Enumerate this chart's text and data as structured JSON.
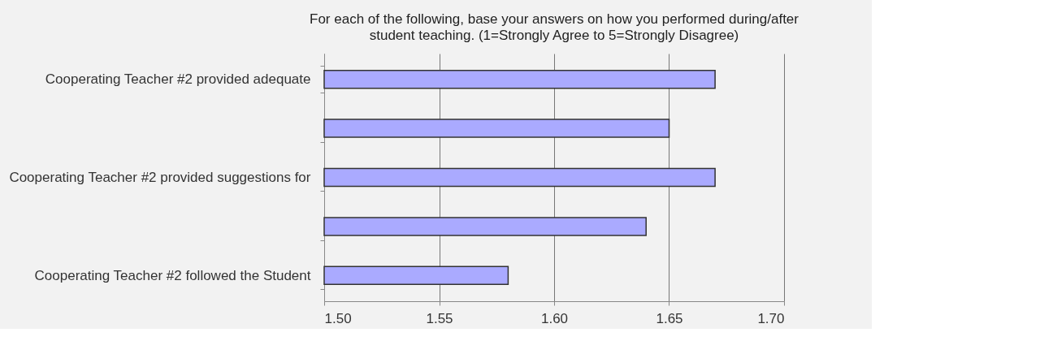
{
  "chart_data": {
    "type": "bar",
    "orientation": "horizontal",
    "title": "For each of the following, base your answers on how you performed during/after\nstudent teaching.   (1=Strongly Agree to 5=Strongly Disagree)",
    "categories": [
      "Cooperating Teacher #2 provided adequate",
      null,
      "Cooperating Teacher #2 provided suggestions for",
      null,
      "Cooperating Teacher #2 followed the Student"
    ],
    "values": [
      1.67,
      1.65,
      1.67,
      1.64,
      1.58
    ],
    "color": "#aaaaff",
    "xlim": [
      1.5,
      1.7
    ],
    "xticks": [
      {
        "value": 1.5,
        "label": "1.50"
      },
      {
        "value": 1.55,
        "label": "1.55"
      },
      {
        "value": 1.6,
        "label": "1.60"
      },
      {
        "value": 1.65,
        "label": "1.65"
      },
      {
        "value": 1.7,
        "label": "1.70"
      }
    ],
    "grid": "x"
  }
}
